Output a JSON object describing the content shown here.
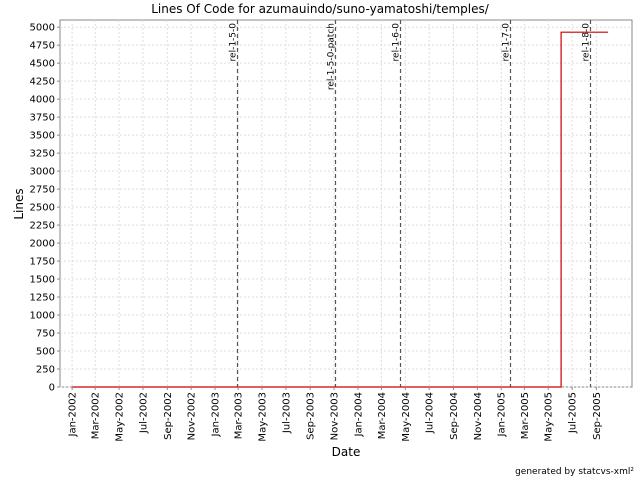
{
  "chart_data": {
    "type": "line",
    "title": "Lines Of Code for azumauindo/suno-yamatoshi/temples/",
    "xlabel": "Date",
    "ylabel": "Lines",
    "footer": "generated by statcvs-xml²",
    "x_range": [
      "2001-12",
      "2005-12"
    ],
    "ylim": [
      0,
      5100
    ],
    "y_ticks": [
      0,
      250,
      500,
      750,
      1000,
      1250,
      1500,
      1750,
      2000,
      2250,
      2500,
      2750,
      3000,
      3250,
      3500,
      3750,
      4000,
      4250,
      4500,
      4750,
      5000
    ],
    "x_ticks": [
      {
        "date": "2002-01",
        "label": "Jan-2002"
      },
      {
        "date": "2002-03",
        "label": "Mar-2002"
      },
      {
        "date": "2002-05",
        "label": "May-2002"
      },
      {
        "date": "2002-07",
        "label": "Jul-2002"
      },
      {
        "date": "2002-09",
        "label": "Sep-2002"
      },
      {
        "date": "2002-11",
        "label": "Nov-2002"
      },
      {
        "date": "2003-01",
        "label": "Jan-2003"
      },
      {
        "date": "2003-03",
        "label": "Mar-2003"
      },
      {
        "date": "2003-05",
        "label": "May-2003"
      },
      {
        "date": "2003-07",
        "label": "Jul-2003"
      },
      {
        "date": "2003-09",
        "label": "Sep-2003"
      },
      {
        "date": "2003-11",
        "label": "Nov-2003"
      },
      {
        "date": "2004-01",
        "label": "Jan-2004"
      },
      {
        "date": "2004-03",
        "label": "Mar-2004"
      },
      {
        "date": "2004-05",
        "label": "May-2004"
      },
      {
        "date": "2004-07",
        "label": "Jul-2004"
      },
      {
        "date": "2004-09",
        "label": "Sep-2004"
      },
      {
        "date": "2004-11",
        "label": "Nov-2004"
      },
      {
        "date": "2005-01",
        "label": "Jan-2005"
      },
      {
        "date": "2005-03",
        "label": "Mar-2005"
      },
      {
        "date": "2005-05",
        "label": "May-2005"
      },
      {
        "date": "2005-07",
        "label": "Jul-2005"
      },
      {
        "date": "2005-09",
        "label": "Sep-2005"
      }
    ],
    "markers": [
      {
        "date": "2003-02-26",
        "label": "rel-1-5-0"
      },
      {
        "date": "2003-11-03",
        "label": "rel-1-5-0-patch"
      },
      {
        "date": "2004-04-18",
        "label": "rel-1-6-0"
      },
      {
        "date": "2005-01-24",
        "label": "rel-1-7-0"
      },
      {
        "date": "2005-08-15",
        "label": "rel-1-8-0"
      }
    ],
    "series": [
      {
        "color": "#cc0000",
        "points": [
          {
            "x": "2002-01-01",
            "y": 0
          },
          {
            "x": "2005-06-03",
            "y": 0
          },
          {
            "x": "2005-06-03",
            "y": 4930
          },
          {
            "x": "2005-10-01",
            "y": 4930
          }
        ]
      }
    ],
    "grid": true,
    "colors": {
      "series": "#cc0000",
      "grid": "#dddddd",
      "marker": "#555555",
      "axis": "#888888"
    }
  }
}
